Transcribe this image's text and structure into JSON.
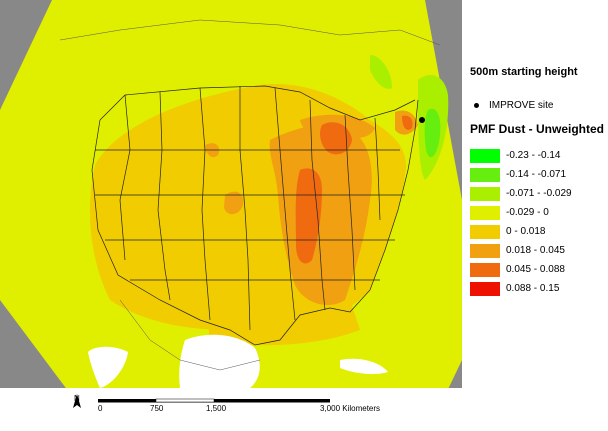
{
  "legend": {
    "title": "500m starting height",
    "site_label": "IMPROVE site",
    "subtitle": "PMF Dust - Unweighted",
    "classes": [
      {
        "label": "-0.23 - -0.14",
        "color": "#00ff00"
      },
      {
        "label": "-0.14 - -0.071",
        "color": "#66ee11"
      },
      {
        "label": "-0.071 - -0.029",
        "color": "#aaee00"
      },
      {
        "label": "-0.029 - 0",
        "color": "#e0ee00"
      },
      {
        "label": "0 - 0.018",
        "color": "#f0cc00"
      },
      {
        "label": "0.018 - 0.045",
        "color": "#f0a010"
      },
      {
        "label": "0.045 - 0.088",
        "color": "#f06a10"
      },
      {
        "label": "0.088 - 0.15",
        "color": "#ee1100"
      }
    ]
  },
  "scale_bar": {
    "north_label": "N",
    "ticks": [
      "0",
      "750",
      "1,500",
      "3,000 Kilometers"
    ]
  },
  "colors": {
    "water_gray": "#888888",
    "land_white": "#ffffff"
  }
}
